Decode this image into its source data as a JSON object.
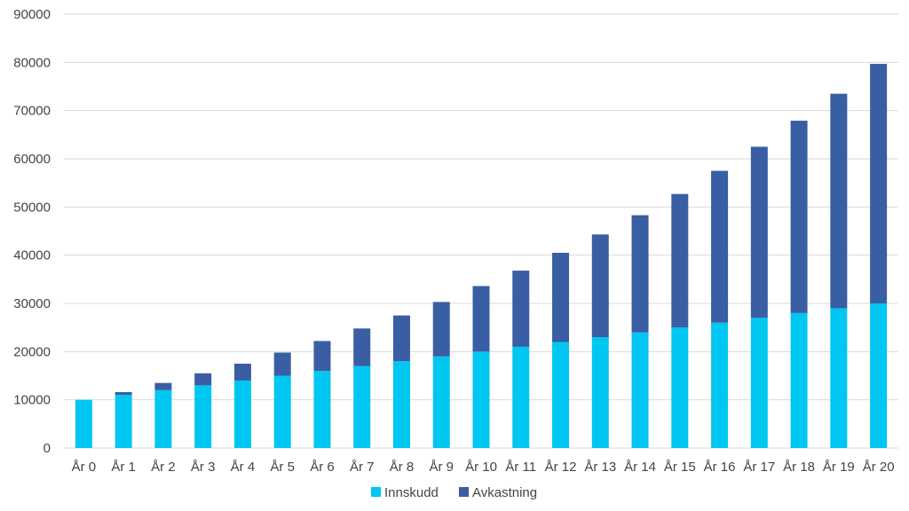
{
  "chart_data": {
    "type": "bar",
    "stacked": true,
    "categories": [
      "År 0",
      "År 1",
      "År 2",
      "År 3",
      "År 4",
      "År 5",
      "År 6",
      "År 7",
      "År 8",
      "År 9",
      "År 10",
      "År 11",
      "År 12",
      "År 13",
      "År 14",
      "År 15",
      "År 16",
      "År 17",
      "År 18",
      "År 19",
      "År 20"
    ],
    "series": [
      {
        "name": "Innskudd",
        "color": "#00c6f2",
        "values": [
          10000,
          11000,
          12000,
          13000,
          14000,
          15000,
          16000,
          17000,
          18000,
          19000,
          20000,
          21000,
          22000,
          23000,
          24000,
          25000,
          26000,
          27000,
          28000,
          29000,
          30000
        ]
      },
      {
        "name": "Avkastning",
        "color": "#3a5ea3",
        "values": [
          0,
          600,
          1500,
          2500,
          3500,
          4800,
          6200,
          7800,
          9500,
          11300,
          13600,
          15800,
          18500,
          21300,
          24300,
          27700,
          31500,
          35500,
          39900,
          44500,
          49700
        ]
      }
    ],
    "ylim": [
      0,
      90000
    ],
    "yticks": [
      0,
      10000,
      20000,
      30000,
      40000,
      50000,
      60000,
      70000,
      80000,
      90000
    ],
    "grid": true,
    "legend_position": "bottom",
    "title": "",
    "xlabel": "",
    "ylabel": ""
  }
}
